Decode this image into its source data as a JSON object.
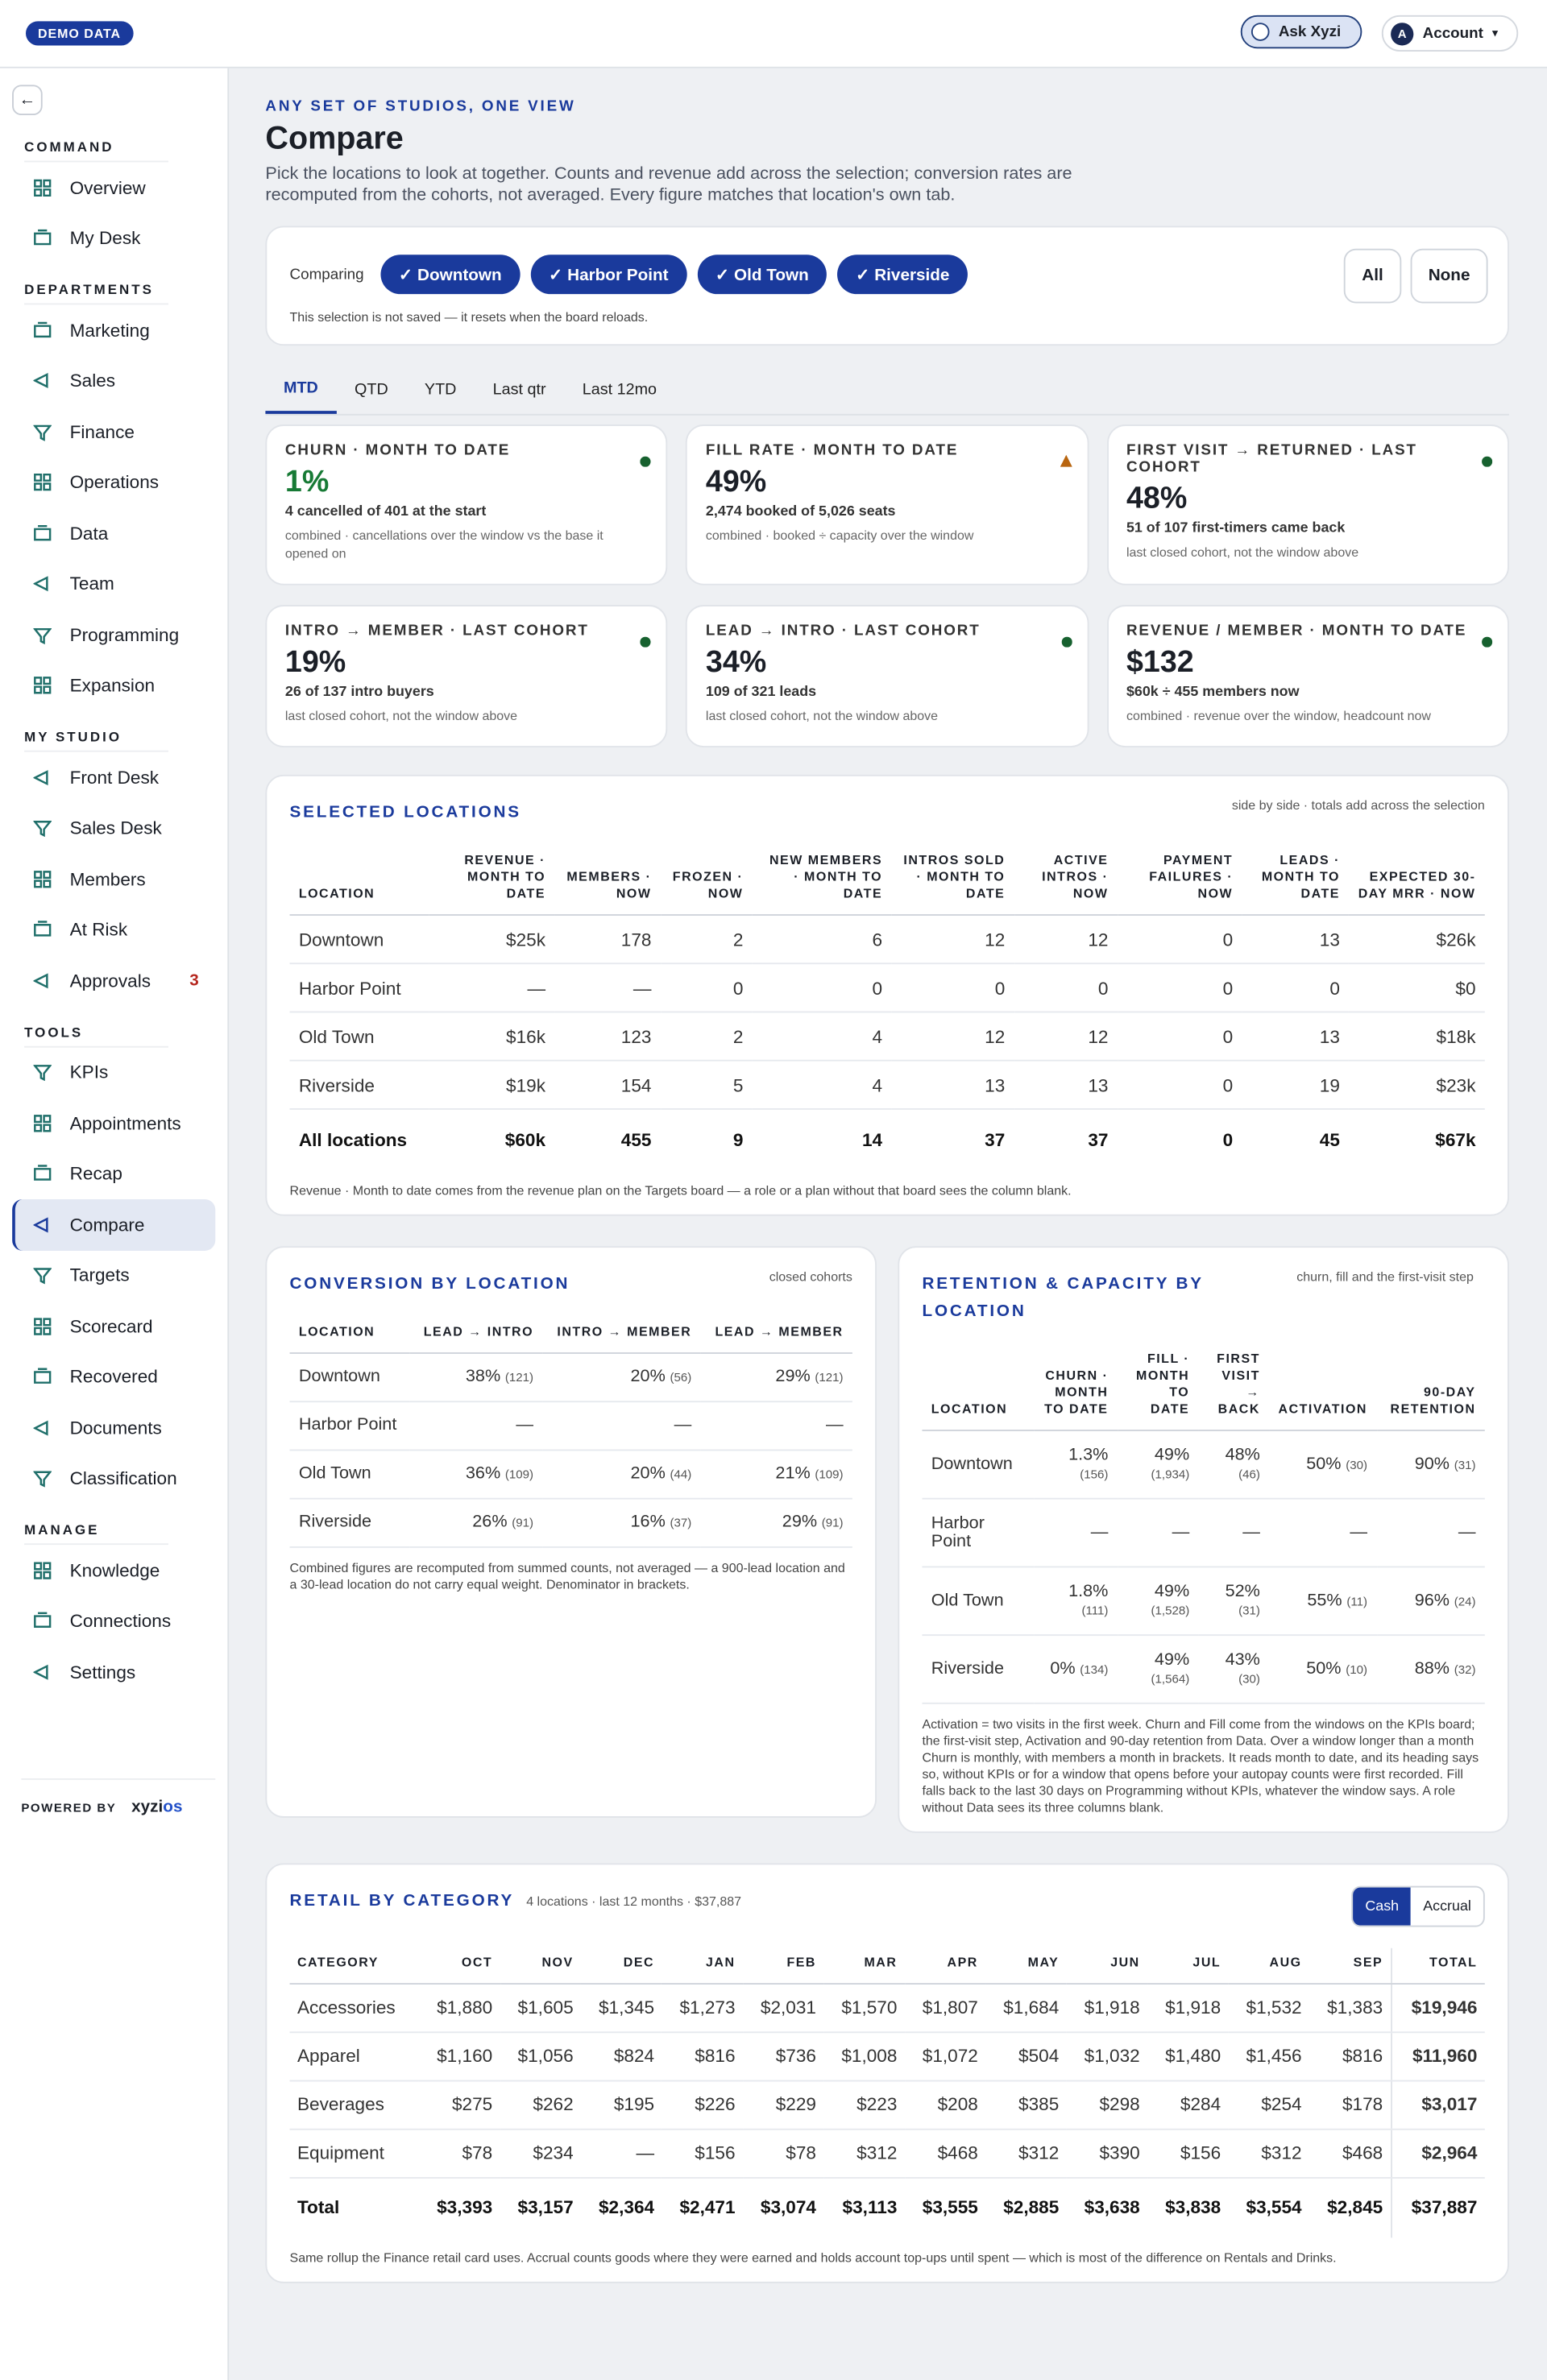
{
  "topbar": {
    "badge": "DEMO DATA",
    "ask": "Ask Xyzi",
    "avatar": "A",
    "account": "Account"
  },
  "sidebar": {
    "sections": [
      {
        "title": "COMMAND",
        "items": [
          {
            "label": "Overview"
          },
          {
            "label": "My Desk"
          }
        ]
      },
      {
        "title": "DEPARTMENTS",
        "items": [
          {
            "label": "Marketing"
          },
          {
            "label": "Sales"
          },
          {
            "label": "Finance"
          },
          {
            "label": "Operations"
          },
          {
            "label": "Data"
          },
          {
            "label": "Team"
          },
          {
            "label": "Programming"
          },
          {
            "label": "Expansion"
          }
        ]
      },
      {
        "title": "MY STUDIO",
        "items": [
          {
            "label": "Front Desk"
          },
          {
            "label": "Sales Desk"
          },
          {
            "label": "Members"
          },
          {
            "label": "At Risk"
          },
          {
            "label": "Approvals",
            "badge": "3"
          }
        ]
      },
      {
        "title": "TOOLS",
        "items": [
          {
            "label": "KPIs"
          },
          {
            "label": "Appointments"
          },
          {
            "label": "Recap"
          },
          {
            "label": "Compare",
            "active": true
          },
          {
            "label": "Targets"
          },
          {
            "label": "Scorecard"
          },
          {
            "label": "Recovered"
          },
          {
            "label": "Documents"
          },
          {
            "label": "Classification"
          }
        ]
      },
      {
        "title": "MANAGE",
        "items": [
          {
            "label": "Knowledge"
          },
          {
            "label": "Connections"
          },
          {
            "label": "Settings"
          }
        ]
      }
    ],
    "powered_by": "POWERED BY",
    "brand_main": "xyzi",
    "brand_accent": "os"
  },
  "header": {
    "eyebrow": "ANY SET OF STUDIOS, ONE VIEW",
    "title": "Compare",
    "description": "Pick the locations to look at together. Counts and revenue add across the selection; conversion rates are recomputed from the cohorts, not averaged. Every figure matches that location's own tab."
  },
  "selector": {
    "label": "Comparing",
    "chips": [
      "✓ Downtown",
      "✓ Harbor Point",
      "✓ Old Town",
      "✓ Riverside"
    ],
    "buttons": [
      "All",
      "None"
    ],
    "note": "This selection is not saved — it resets when the board reloads."
  },
  "tabs": [
    "MTD",
    "QTD",
    "YTD",
    "Last qtr",
    "Last 12mo"
  ],
  "kpis": [
    {
      "title": "CHURN · MONTH TO DATE",
      "status": "good",
      "highlight": true,
      "value": "1%",
      "detail": "4 cancelled of 401 at the start",
      "note": "combined · cancellations over the window vs the base it opened on"
    },
    {
      "title": "FILL RATE · MONTH TO DATE",
      "status": "warn",
      "value": "49%",
      "detail": "2,474 booked of 5,026 seats",
      "note": "combined · booked ÷ capacity over the window"
    },
    {
      "title": "FIRST VISIT → RETURNED · LAST COHORT",
      "status": "good",
      "value": "48%",
      "detail": "51 of 107 first-timers came back",
      "note": "last closed cohort, not the window above"
    },
    {
      "title": "INTRO → MEMBER · LAST COHORT",
      "status": "good",
      "value": "19%",
      "detail": "26 of 137 intro buyers",
      "note": "last closed cohort, not the window above"
    },
    {
      "title": "LEAD → INTRO · LAST COHORT",
      "status": "good",
      "value": "34%",
      "detail": "109 of 321 leads",
      "note": "last closed cohort, not the window above"
    },
    {
      "title": "REVENUE / MEMBER · MONTH TO DATE",
      "status": "good",
      "value": "$132",
      "detail": "$60k ÷ 455 members now",
      "note": "combined · revenue over the window, headcount now"
    }
  ],
  "locations": {
    "title": "SELECTED LOCATIONS",
    "subtitle": "side by side · totals add across the selection",
    "columns": [
      "LOCATION",
      "REVENUE · MONTH TO DATE",
      "MEMBERS · NOW",
      "FROZEN · NOW",
      "NEW MEMBERS · MONTH TO DATE",
      "INTROS SOLD · MONTH TO DATE",
      "ACTIVE INTROS · NOW",
      "PAYMENT FAILURES · NOW",
      "LEADS · MONTH TO DATE",
      "EXPECTED 30-DAY MRR · NOW"
    ],
    "rows": [
      [
        "Downtown",
        "$25k",
        "178",
        "2",
        "6",
        "12",
        "12",
        "0",
        "13",
        "$26k"
      ],
      [
        "Harbor Point",
        "—",
        "—",
        "0",
        "0",
        "0",
        "0",
        "0",
        "0",
        "$0"
      ],
      [
        "Old Town",
        "$16k",
        "123",
        "2",
        "4",
        "12",
        "12",
        "0",
        "13",
        "$18k"
      ],
      [
        "Riverside",
        "$19k",
        "154",
        "5",
        "4",
        "13",
        "13",
        "0",
        "19",
        "$23k"
      ]
    ],
    "total": [
      "All locations",
      "$60k",
      "455",
      "9",
      "14",
      "37",
      "37",
      "0",
      "45",
      "$67k"
    ],
    "footnote": "Revenue · Month to date comes from the revenue plan on the Targets board — a role or a plan without that board sees the column blank."
  },
  "conversion": {
    "title": "CONVERSION BY LOCATION",
    "subtitle": "closed cohorts",
    "columns": [
      "LOCATION",
      "LEAD → INTRO",
      "INTRO → MEMBER",
      "LEAD → MEMBER"
    ],
    "rows": [
      [
        "Downtown",
        [
          "38%",
          "(121)"
        ],
        [
          "20%",
          "(56)"
        ],
        [
          "29%",
          "(121)"
        ]
      ],
      [
        "Harbor Point",
        "—",
        "—",
        "—"
      ],
      [
        "Old Town",
        [
          "36%",
          "(109)"
        ],
        [
          "20%",
          "(44)"
        ],
        [
          "21%",
          "(109)"
        ]
      ],
      [
        "Riverside",
        [
          "26%",
          "(91)"
        ],
        [
          "16%",
          "(37)"
        ],
        [
          "29%",
          "(91)"
        ]
      ]
    ],
    "footnote": "Combined figures are recomputed from summed counts, not averaged — a 900-lead location and a 30-lead location do not carry equal weight. Denominator in brackets."
  },
  "retention": {
    "title": "RETENTION & CAPACITY BY LOCATION",
    "subtitle": "churn, fill and the first-visit step",
    "columns": [
      "LOCATION",
      "CHURN · MONTH TO DATE",
      "FILL · MONTH TO DATE",
      "FIRST VISIT → BACK",
      "ACTIVATION",
      "90-DAY RETENTION"
    ],
    "rows": [
      [
        "Downtown",
        [
          "1.3%",
          "(156)"
        ],
        [
          "49%",
          "(1,934)"
        ],
        [
          "48%",
          "(46)"
        ],
        [
          "50%",
          "(30)"
        ],
        [
          "90%",
          "(31)"
        ]
      ],
      [
        "Harbor Point",
        "—",
        "—",
        "—",
        "—",
        "—"
      ],
      [
        "Old Town",
        [
          "1.8%",
          "(111)"
        ],
        [
          "49%",
          "(1,528)"
        ],
        [
          "52%",
          "(31)"
        ],
        [
          "55%",
          "(11)"
        ],
        [
          "96%",
          "(24)"
        ]
      ],
      [
        "Riverside",
        [
          "0%",
          "(134)"
        ],
        [
          "49%",
          "(1,564)"
        ],
        [
          "43%",
          "(30)"
        ],
        [
          "50%",
          "(10)"
        ],
        [
          "88%",
          "(32)"
        ]
      ]
    ],
    "footnote": "Activation = two visits in the first week. Churn and Fill come from the windows on the KPIs board; the first-visit step, Activation and 90-day retention from Data. Over a window longer than a month Churn is monthly, with members a month in brackets. It reads month to date, and its heading says so, without KPIs or for a window that opens before your autopay counts were first recorded. Fill falls back to the last 30 days on Programming without KPIs, whatever the window says. A role without Data sees its three columns blank."
  },
  "retail": {
    "title": "RETAIL BY CATEGORY",
    "subtitle": "4 locations · last 12 months · $37,887",
    "toggle": [
      "Cash",
      "Accrual"
    ],
    "columns": [
      "CATEGORY",
      "OCT",
      "NOV",
      "DEC",
      "JAN",
      "FEB",
      "MAR",
      "APR",
      "MAY",
      "JUN",
      "JUL",
      "AUG",
      "SEP",
      "TOTAL"
    ],
    "rows": [
      [
        "Accessories",
        "$1,880",
        "$1,605",
        "$1,345",
        "$1,273",
        "$2,031",
        "$1,570",
        "$1,807",
        "$1,684",
        "$1,918",
        "$1,918",
        "$1,532",
        "$1,383",
        "$19,946"
      ],
      [
        "Apparel",
        "$1,160",
        "$1,056",
        "$824",
        "$816",
        "$736",
        "$1,008",
        "$1,072",
        "$504",
        "$1,032",
        "$1,480",
        "$1,456",
        "$816",
        "$11,960"
      ],
      [
        "Beverages",
        "$275",
        "$262",
        "$195",
        "$226",
        "$229",
        "$223",
        "$208",
        "$385",
        "$298",
        "$284",
        "$254",
        "$178",
        "$3,017"
      ],
      [
        "Equipment",
        "$78",
        "$234",
        "—",
        "$156",
        "$78",
        "$312",
        "$468",
        "$312",
        "$390",
        "$156",
        "$312",
        "$468",
        "$2,964"
      ]
    ],
    "total": [
      "Total",
      "$3,393",
      "$3,157",
      "$2,364",
      "$2,471",
      "$3,074",
      "$3,113",
      "$3,555",
      "$2,885",
      "$3,638",
      "$3,838",
      "$3,554",
      "$2,845",
      "$37,887"
    ],
    "footnote": "Same rollup the Finance retail card uses. Accrual counts goods where they were earned and holds account top-ups until spent — which is most of the difference on Rentals and Drinks."
  }
}
